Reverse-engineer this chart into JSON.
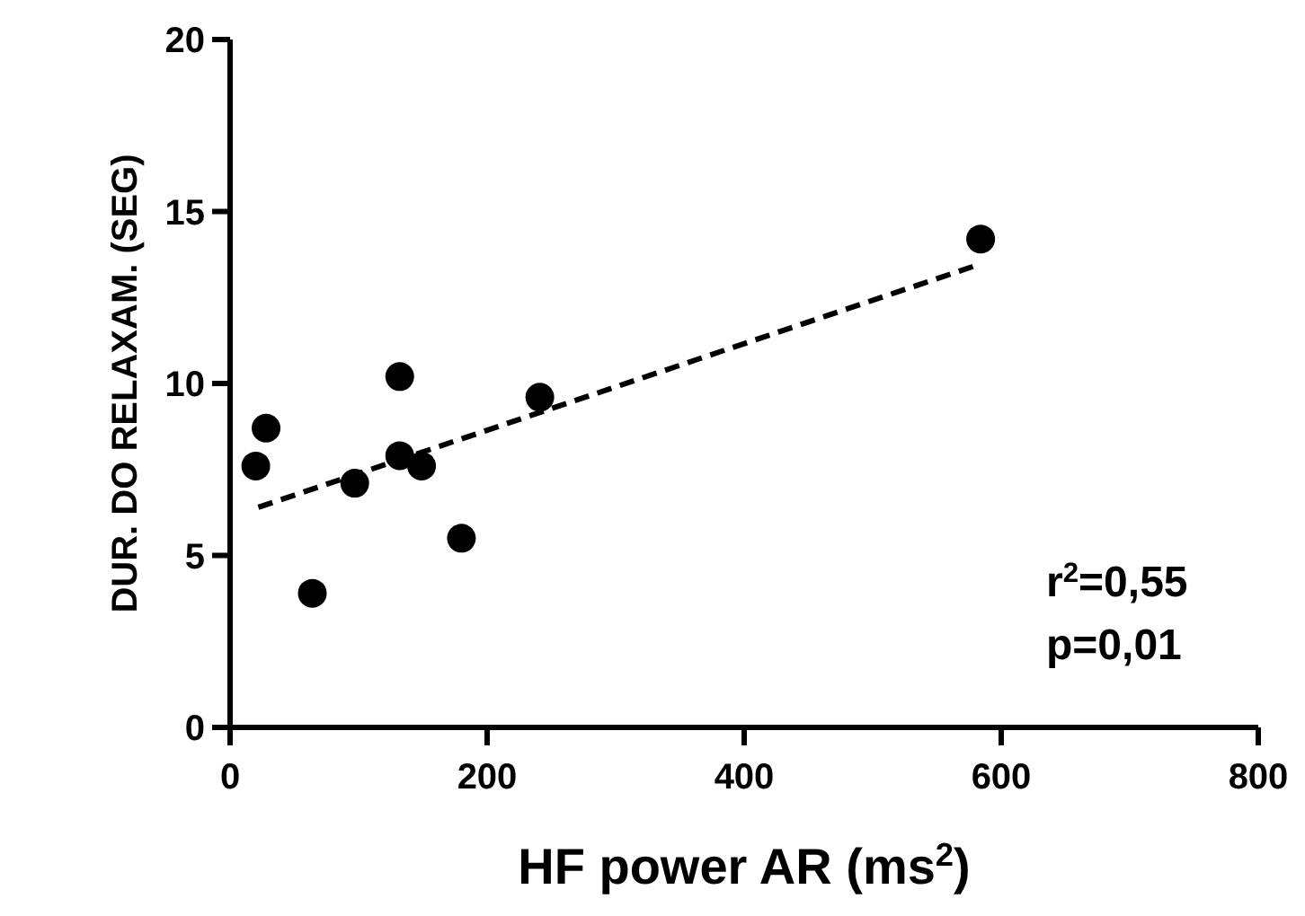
{
  "chart_data": {
    "type": "scatter",
    "xlabel": "HF power AR (ms$^{2}$)",
    "ylabel": "DUR. DO RELAXAM. (SEG)",
    "xlim": [
      0,
      800
    ],
    "xticks": [
      0,
      200,
      400,
      600,
      800
    ],
    "ylim": [
      0,
      20
    ],
    "yticks": [
      0,
      5,
      10,
      15,
      20
    ],
    "grid": false,
    "series": [
      {
        "color": "#000000",
        "marker": "circle",
        "x": [
          20,
          28,
          64,
          97,
          132,
          132,
          149,
          180,
          241,
          584
        ],
        "values": [
          7.6,
          8.7,
          3.9,
          7.1,
          10.2,
          7.9,
          7.6,
          5.5,
          9.6,
          14.2
        ]
      },
      {
        "type": "line",
        "color": "#000000",
        "line_style": "dashed",
        "marker": "none",
        "x": [
          22,
          578
        ],
        "values": [
          6.4,
          13.4
        ]
      }
    ],
    "annotations": [
      "r$^{2}$=0,55",
      "p=0,01"
    ]
  }
}
